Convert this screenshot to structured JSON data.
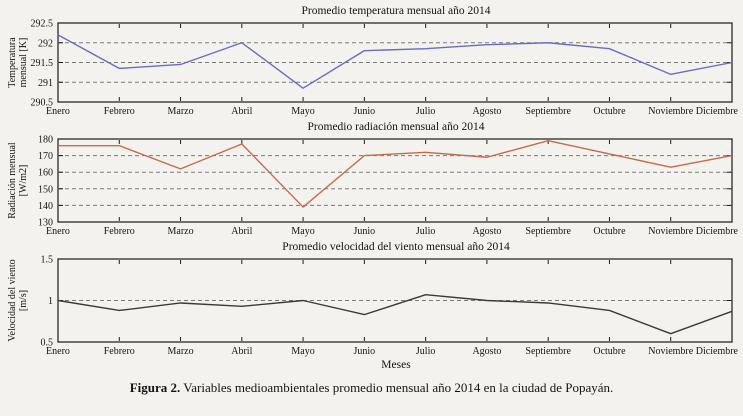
{
  "page": {
    "xlabel": "Meses",
    "caption": {
      "label": "Figura 2.",
      "text": "Variables medioambientales promedio mensual año 2014 en la ciudad de Popayán."
    }
  },
  "chart_data": [
    {
      "type": "line",
      "title": "Promedio temperatura mensual año 2014",
      "ylabel": "Temperatura mensual [K]",
      "ylabel_lines": [
        "Temperatura",
        "mensual [K]"
      ],
      "categories": [
        "Enero",
        "Febrero",
        "Marzo",
        "Abril",
        "Mayo",
        "Junio",
        "Julio",
        "Agosto",
        "Septiembre",
        "Octubre",
        "Noviembre",
        "Diciembre"
      ],
      "values": [
        292.2,
        291.35,
        291.45,
        292.0,
        290.85,
        291.8,
        291.85,
        291.95,
        292.0,
        291.85,
        291.2,
        291.5
      ],
      "ylim": [
        290.5,
        292.5
      ],
      "yticks": [
        290.5,
        291,
        291.5,
        292,
        292.5
      ],
      "line_color": "#6b6bc4",
      "grid": true,
      "legend": "none"
    },
    {
      "type": "line",
      "title": "Promedio radiación mensual año 2014",
      "ylabel": "Radiación mensual [W/m2]",
      "ylabel_lines": [
        "Radiación mensual",
        "[W/m2]"
      ],
      "categories": [
        "Enero",
        "Febrero",
        "Marzo",
        "Abril",
        "Mayo",
        "Junio",
        "Julio",
        "Agosto",
        "Septiembre",
        "Octubre",
        "Noviembre",
        "Diciembre"
      ],
      "values": [
        176,
        176,
        162,
        177,
        139,
        170,
        172,
        169,
        179,
        171,
        163,
        170
      ],
      "ylim": [
        130,
        180
      ],
      "yticks": [
        130,
        140,
        150,
        160,
        170,
        180
      ],
      "line_color": "#c46a50",
      "grid": true,
      "legend": "none"
    },
    {
      "type": "line",
      "title": "Promedio velocidad del viento mensual año 2014",
      "ylabel": "Velocidad del viento [m/s]",
      "ylabel_lines": [
        "Velocidad del viento",
        "[m/s]"
      ],
      "categories": [
        "Enero",
        "Febrero",
        "Marzo",
        "Abril",
        "Mayo",
        "Junio",
        "Julio",
        "Agosto",
        "Septiembre",
        "Octubre",
        "Noviembre",
        "Diciembre"
      ],
      "values": [
        1.0,
        0.88,
        0.97,
        0.93,
        1.0,
        0.83,
        1.07,
        1.0,
        0.97,
        0.88,
        0.6,
        0.87
      ],
      "ylim": [
        0.5,
        1.5
      ],
      "yticks": [
        0.5,
        1,
        1.5
      ],
      "line_color": "#3d3a3a",
      "grid": true,
      "legend": "none",
      "xlabel": "Meses"
    }
  ]
}
